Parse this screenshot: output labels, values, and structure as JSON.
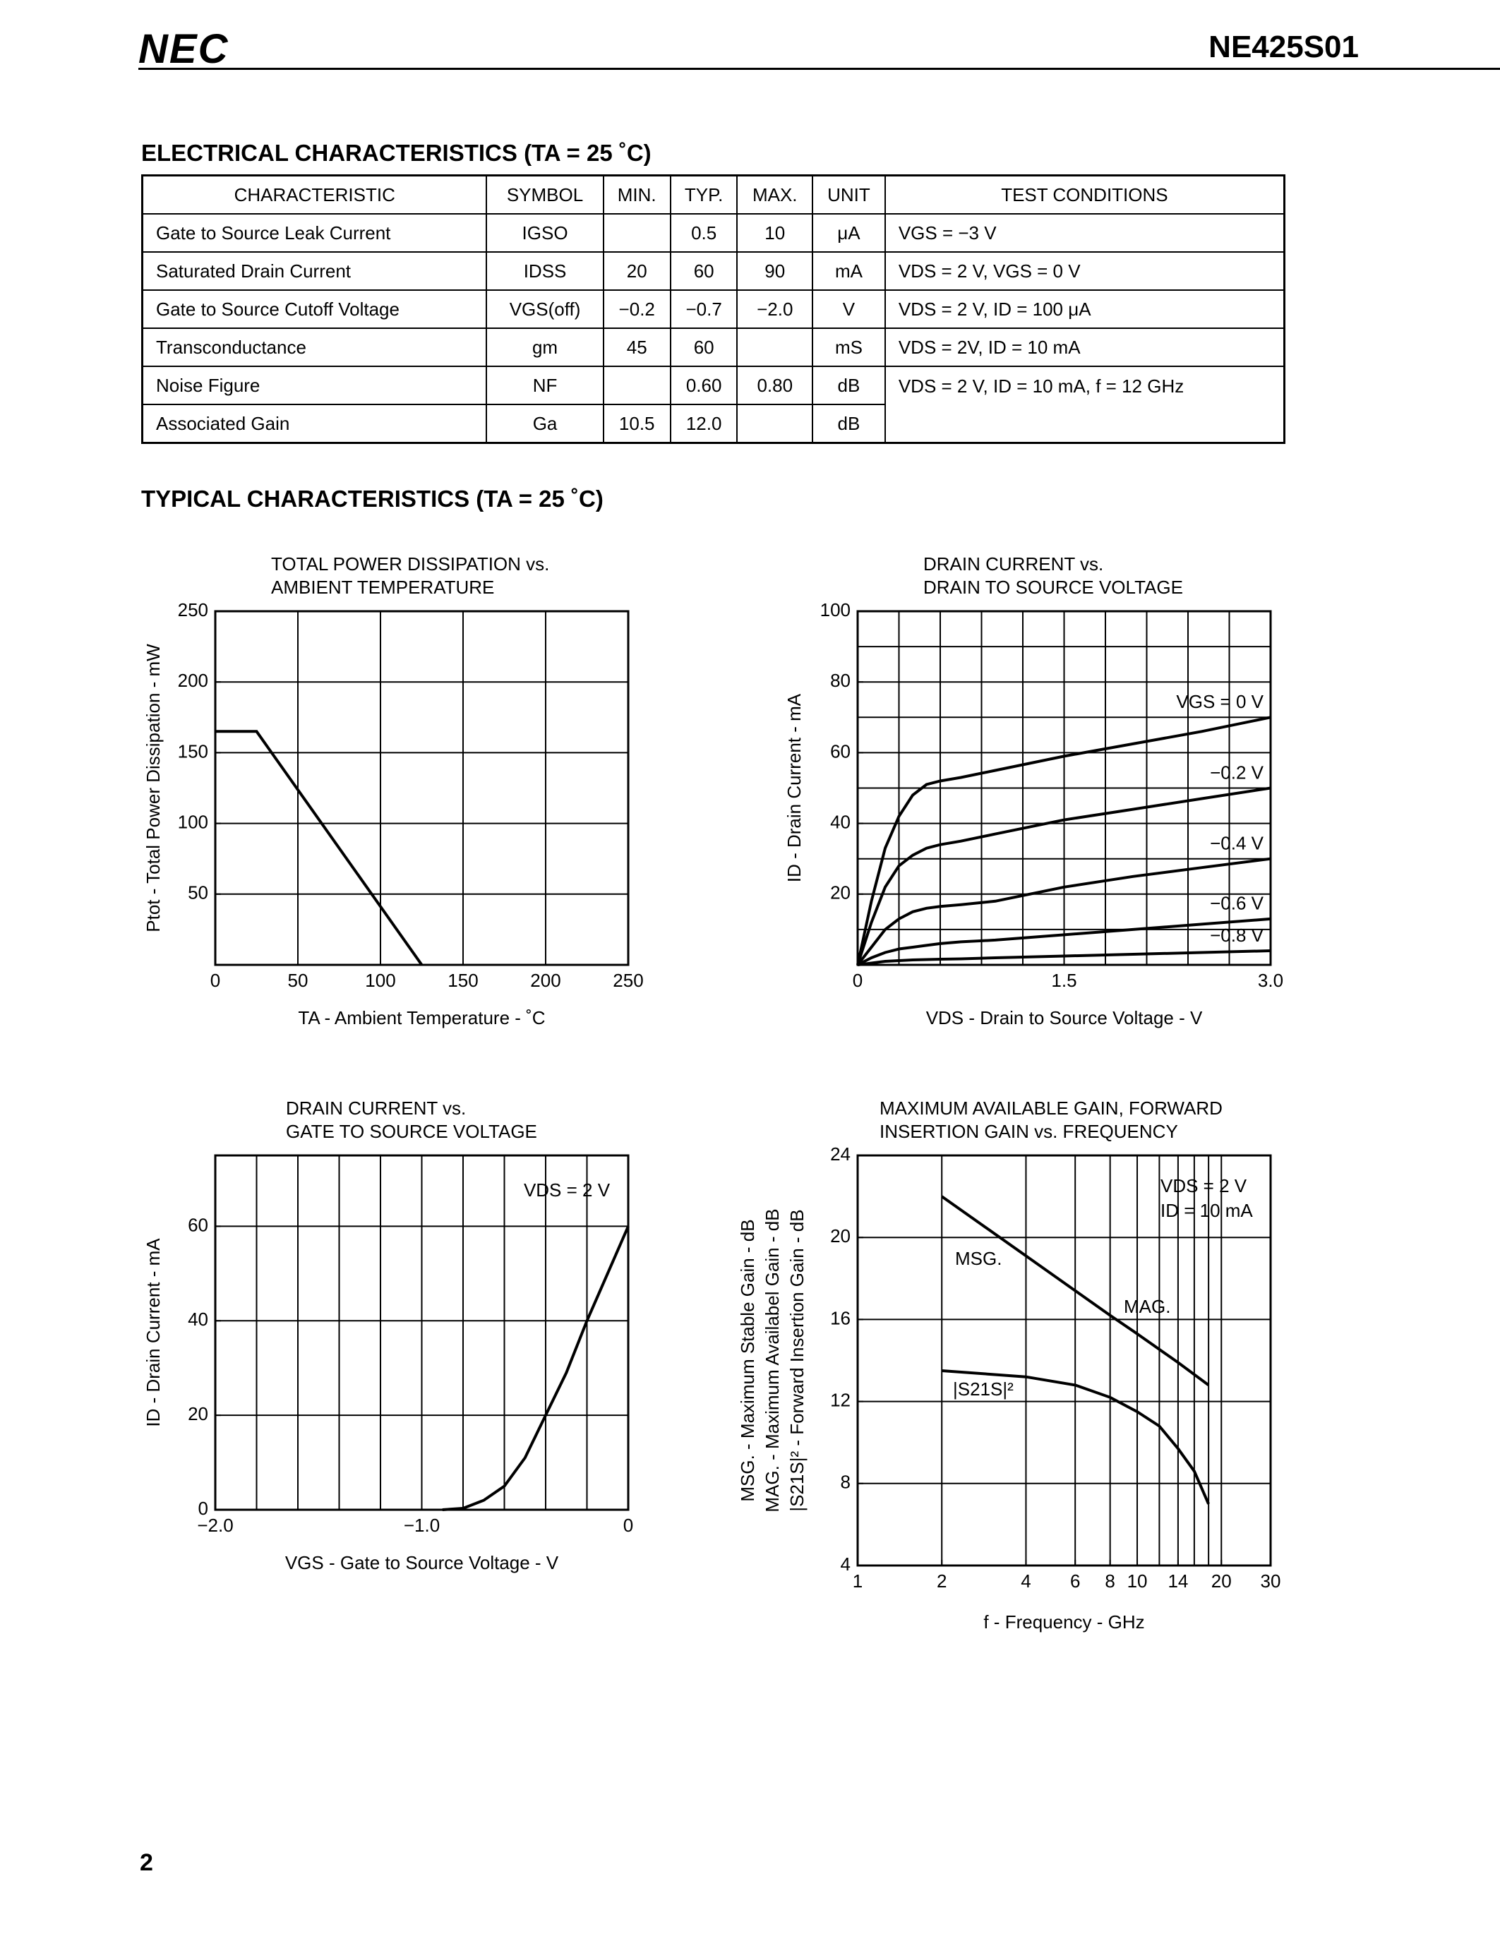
{
  "header": {
    "logo": "NEC",
    "part_number": "NE425S01"
  },
  "electrical_title": "ELECTRICAL  CHARACTERISTICS  (TA = 25 ˚C)",
  "table": {
    "header": [
      "CHARACTERISTIC",
      "SYMBOL",
      "MIN.",
      "TYP.",
      "MAX.",
      "UNIT",
      "TEST CONDITIONS"
    ],
    "rows": [
      [
        "Gate to Source Leak Current",
        "IGSO",
        null,
        "0.5",
        "10",
        "μA",
        "VGS = −3 V"
      ],
      [
        "Saturated Drain Current",
        "IDSS",
        "20",
        "60",
        "90",
        "mA",
        "VDS = 2 V, VGS = 0 V"
      ],
      [
        "Gate to Source Cutoff Voltage",
        "VGS(off)",
        "−0.2",
        "−0.7",
        "−2.0",
        "V",
        "VDS = 2 V, ID = 100 μA"
      ],
      [
        "Transconductance",
        "gm",
        "45",
        "60",
        null,
        "mS",
        "VDS = 2V, ID = 10 mA"
      ],
      [
        "Noise Figure",
        "NF",
        null,
        "0.60",
        "0.80",
        "dB",
        "VDS = 2 V, ID = 10 mA, f = 12 GHz"
      ],
      [
        "Associated Gain",
        "Ga",
        "10.5",
        "12.0",
        null,
        "dB"
      ]
    ]
  },
  "typical_title": "TYPICAL  CHARACTERISTICS  (TA = 25 ˚C)",
  "chart_data": [
    {
      "type": "line",
      "title": [
        "TOTAL POWER DISSIPATION vs.",
        "AMBIENT TEMPERATURE"
      ],
      "x_label": "TA - Ambient Temperature - ˚C",
      "y_label": "Ptot - Total Power Dissipation - mW",
      "xlim": [
        0,
        250
      ],
      "ylim": [
        0,
        250
      ],
      "xticks": [
        0,
        50,
        100,
        150,
        200,
        250
      ],
      "yticks": [
        50,
        100,
        150,
        200,
        250
      ],
      "xgrid": [
        50,
        100,
        150,
        200
      ],
      "ygrid": [
        50,
        100,
        150,
        200
      ],
      "x": [
        0,
        25,
        125
      ],
      "series": [
        {
          "color": "#000000",
          "values": [
            165,
            165,
            0
          ]
        }
      ]
    },
    {
      "type": "line",
      "title": [
        "DRAIN CURRENT vs.",
        "DRAIN TO SOURCE VOLTAGE"
      ],
      "x_label": "VDS - Drain to Source Voltage - V",
      "y_label": "ID - Drain Current - mA",
      "xlim": [
        0,
        3
      ],
      "ylim": [
        0,
        100
      ],
      "xticks": [
        0,
        1.5,
        {
          "value": 3,
          "label": "3.0"
        }
      ],
      "yticks": [
        20,
        40,
        60,
        80,
        100
      ],
      "xgrid": [
        0.3,
        0.6,
        0.9,
        1.2,
        1.5,
        1.8,
        2.1,
        2.4,
        2.7
      ],
      "ygrid": [
        10,
        20,
        30,
        40,
        50,
        60,
        70,
        80,
        90
      ],
      "x": [
        0,
        0.1,
        0.2,
        0.3,
        0.4,
        0.5,
        0.6,
        0.75,
        1.0,
        1.5,
        2.0,
        2.5,
        3.0
      ],
      "series": [
        {
          "name": "VGS = 0 V",
          "color": "#000000",
          "values": [
            0,
            18,
            33,
            42,
            48,
            51,
            52,
            53,
            55,
            59,
            62.5,
            66,
            70
          ]
        },
        {
          "name": "−0.2 V",
          "color": "#000000",
          "values": [
            0,
            12,
            22,
            28,
            31,
            33,
            34,
            35,
            37,
            41,
            44,
            47,
            50
          ]
        },
        {
          "name": "−0.4 V",
          "color": "#000000",
          "values": [
            0,
            5,
            10,
            13,
            15,
            16,
            16.5,
            17,
            18,
            22,
            25,
            27.5,
            30
          ]
        },
        {
          "name": "−0.6 V",
          "color": "#000000",
          "values": [
            0,
            2,
            3.5,
            4.5,
            5,
            5.5,
            6,
            6.5,
            7,
            8.5,
            10,
            11.5,
            13
          ]
        },
        {
          "name": "−0.8 V",
          "color": "#000000",
          "values": [
            0,
            0.5,
            1,
            1.2,
            1.4,
            1.5,
            1.6,
            1.7,
            2,
            2.5,
            3,
            3.5,
            4
          ]
        }
      ]
    },
    {
      "type": "line",
      "title": [
        "DRAIN CURRENT vs.",
        "GATE TO SOURCE VOLTAGE"
      ],
      "x_label": "VGS - Gate to Source Voltage - V",
      "y_label": "ID - Drain Current - mA",
      "annotations": [
        "VDS = 2 V"
      ],
      "xlim": [
        -2,
        0
      ],
      "ylim": [
        0,
        75
      ],
      "xticks": [
        {
          "value": -2,
          "label": "−2.0"
        },
        {
          "value": -1,
          "label": "−1.0"
        },
        0
      ],
      "yticks": [
        0,
        20,
        40,
        60
      ],
      "xgrid": [
        -1.8,
        -1.6,
        -1.4,
        -1.2,
        -1.0,
        -0.8,
        -0.6,
        -0.4,
        -0.2
      ],
      "ygrid": [
        20,
        40,
        60
      ],
      "x": [
        -0.9,
        -0.8,
        -0.7,
        -0.6,
        -0.5,
        -0.4,
        -0.3,
        -0.2,
        -0.1,
        0
      ],
      "series": [
        {
          "color": "#000000",
          "values": [
            0,
            0.3,
            2,
            5,
            11,
            20,
            29,
            40,
            50,
            60
          ]
        }
      ]
    },
    {
      "type": "line",
      "title": [
        "MAXIMUM AVAILABLE GAIN, FORWARD",
        "INSERTION GAIN vs. FREQUENCY"
      ],
      "x_label": "f - Frequency - GHz",
      "y_label": [
        "MSG. - Maximum Stable Gain - dB",
        "MAG. - Maximum Availabel Gain - dB",
        "|S21S|² - Forward Insertion Gain - dB"
      ],
      "annotations": [
        "VDS = 2 V",
        "ID = 10 mA"
      ],
      "xlog": true,
      "xlim": [
        1,
        30
      ],
      "ylim": [
        4,
        24
      ],
      "xticks": [
        1,
        2,
        4,
        6,
        8,
        10,
        14,
        20,
        30
      ],
      "yticks": [
        4,
        8,
        12,
        16,
        20,
        24
      ],
      "xgrid": [
        2,
        4,
        6,
        8,
        10,
        12,
        14,
        16,
        18,
        20
      ],
      "ygrid": [
        8,
        12,
        16,
        20
      ],
      "series": [
        {
          "name": "MSG.",
          "color": "#000000",
          "x": [
            2,
            4,
            8,
            10
          ],
          "values": [
            22,
            19.1,
            16.2,
            15.3
          ]
        },
        {
          "name": "MAG.",
          "color": "#000000",
          "x": [
            10,
            14,
            18
          ],
          "values": [
            15.3,
            13.9,
            12.8
          ]
        },
        {
          "name": "|S21S|²",
          "color": "#000000",
          "x": [
            2,
            4,
            6,
            8,
            10,
            12,
            14,
            16,
            18
          ],
          "values": [
            13.5,
            13.2,
            12.8,
            12.2,
            11.5,
            10.8,
            9.7,
            8.6,
            7
          ]
        }
      ]
    }
  ],
  "page_number": "2"
}
